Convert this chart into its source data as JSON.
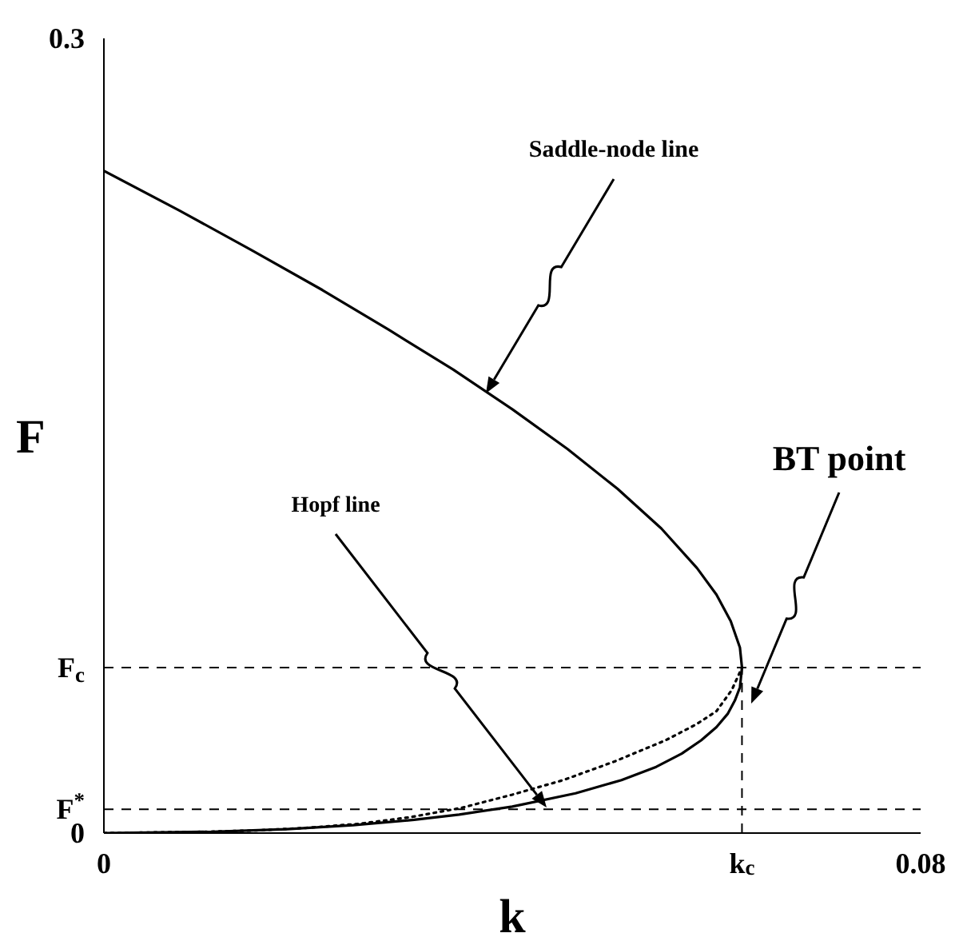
{
  "chart_data": {
    "type": "line",
    "xlabel": "k",
    "ylabel": "F",
    "xlim": [
      0,
      0.08
    ],
    "ylim": [
      0,
      0.3
    ],
    "xticks": [
      0,
      {
        "value": 0.0625,
        "label": "k$_{c}$"
      },
      0.08
    ],
    "yticks": [
      0,
      {
        "value": 0.009,
        "label": "F$^{*}$"
      },
      {
        "value": 0.0625,
        "label": "F$_{c}$"
      },
      0.3
    ],
    "marker": "none",
    "series": [
      {
        "color": "#000000",
        "line_style": "solid",
        "x": [
          0,
          0.0074,
          0.0145,
          0.0214,
          0.0279,
          0.0342,
          0.04,
          0.0454,
          0.0503,
          0.0546,
          0.0581,
          0.06,
          0.0614,
          0.0623,
          0.0625,
          0.0623,
          0.0618,
          0.0611,
          0.06,
          0.0585,
          0.0566,
          0.0541,
          0.0507,
          0.0462,
          0.04,
          0.0348,
          0.0304,
          0.0244,
          0.0179,
          0.0107,
          0
        ],
        "values": [
          0.25,
          0.235,
          0.22,
          0.205,
          0.19,
          0.175,
          0.16,
          0.145,
          0.13,
          0.115,
          0.1,
          0.09,
          0.08,
          0.07,
          0.0625,
          0.055,
          0.05,
          0.045,
          0.04,
          0.035,
          0.03,
          0.025,
          0.02,
          0.015,
          0.01,
          0.007,
          0.005,
          0.003,
          0.0015,
          0.0005,
          0
        ]
      },
      {
        "color": "#000000",
        "line_style": "dotted",
        "x": [
          0,
          0.01,
          0.015,
          0.02,
          0.025,
          0.03,
          0.035,
          0.04,
          0.045,
          0.05,
          0.055,
          0.058,
          0.06,
          0.0615,
          0.0625
        ],
        "values": [
          0,
          0.0005,
          0.001,
          0.002,
          0.0035,
          0.006,
          0.0095,
          0.0145,
          0.02,
          0.027,
          0.035,
          0.041,
          0.046,
          0.054,
          0.0625
        ]
      }
    ],
    "ref_lines": [
      {
        "axis": "y",
        "value": 0.0625,
        "line_style": "dashed"
      },
      {
        "axis": "y",
        "value": 0.009,
        "line_style": "dashed"
      },
      {
        "axis": "x",
        "value": 0.0625,
        "line_style": "dashed"
      }
    ],
    "annotations": [
      "Saddle-node line",
      "Hopf line",
      "BT point"
    ]
  }
}
